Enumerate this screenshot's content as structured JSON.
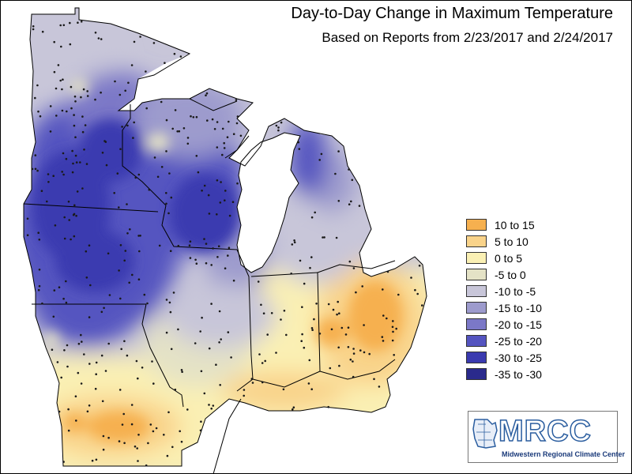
{
  "map": {
    "title": "Day-to-Day Change in Maximum Temperature",
    "subtitle": "Based on Reports from 2/23/2017 and 2/24/2017",
    "background": "#ffffff",
    "border_color": "#000000",
    "state_line_color": "#000000",
    "station_dot_color": "#1a1a1a"
  },
  "legend": {
    "items": [
      {
        "label": "10 to 15",
        "color": "#f6b04f"
      },
      {
        "label": "5 to 10",
        "color": "#f9d38a"
      },
      {
        "label": "0 to 5",
        "color": "#faf0b4"
      },
      {
        "label": "-5 to 0",
        "color": "#e4e2c6"
      },
      {
        "label": "-10 to -5",
        "color": "#c8c6d9"
      },
      {
        "label": "-15 to -10",
        "color": "#9d9bcd"
      },
      {
        "label": "-20 to -15",
        "color": "#7b78c7"
      },
      {
        "label": "-25 to -20",
        "color": "#5454c0"
      },
      {
        "label": "-30 to -25",
        "color": "#3a3ab0"
      },
      {
        "label": "-35 to -30",
        "color": "#2a2a8c"
      }
    ]
  },
  "logo": {
    "text": "MRCC",
    "subtext": "Midwestern Regional Climate Center"
  }
}
